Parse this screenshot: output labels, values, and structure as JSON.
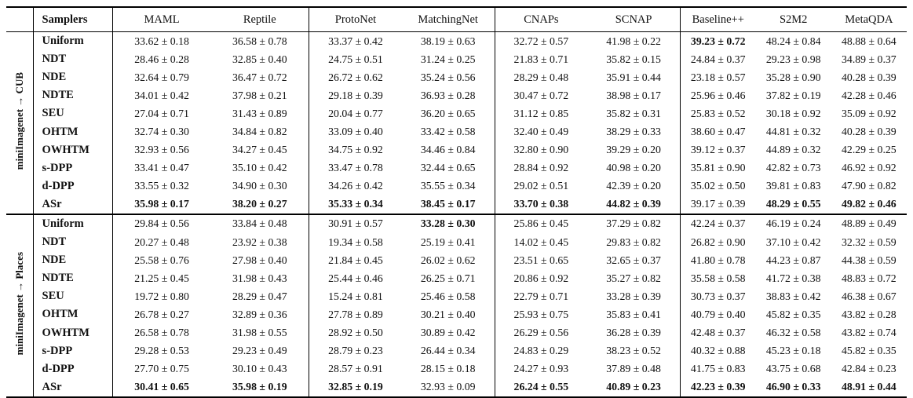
{
  "colors": {
    "text": "#111111",
    "rule": "#000000",
    "background": "#ffffff"
  },
  "table": {
    "header": {
      "samplers_label": "Samplers",
      "models": [
        "MAML",
        "Reptile",
        "ProtoNet",
        "MatchingNet",
        "CNAPs",
        "SCNAP",
        "Baseline++",
        "S2M2",
        "MetaQDA"
      ]
    },
    "sections": [
      {
        "group_label": "miniImagenet → CUB",
        "rows": [
          {
            "sampler": "Uniform",
            "values": [
              "33.62 ± 0.18",
              "36.58 ± 0.78",
              "33.37 ± 0.42",
              "38.19 ± 0.63",
              "32.72 ± 0.57",
              "41.98 ± 0.22",
              "39.23 ± 0.72",
              "48.24 ± 0.84",
              "48.88 ± 0.64"
            ],
            "bold": [
              6
            ]
          },
          {
            "sampler": "NDT",
            "values": [
              "28.46 ± 0.28",
              "32.85 ± 0.40",
              "24.75 ± 0.51",
              "31.24 ± 0.25",
              "21.83 ± 0.71",
              "35.82 ± 0.15",
              "24.84 ± 0.37",
              "29.23 ± 0.98",
              "34.89 ± 0.37"
            ],
            "bold": []
          },
          {
            "sampler": "NDE",
            "values": [
              "32.64 ± 0.79",
              "36.47 ± 0.72",
              "26.72 ± 0.62",
              "35.24 ± 0.56",
              "28.29 ± 0.48",
              "35.91 ± 0.44",
              "23.18 ± 0.57",
              "35.28 ± 0.90",
              "40.28 ± 0.39"
            ],
            "bold": []
          },
          {
            "sampler": "NDTE",
            "values": [
              "34.01 ± 0.42",
              "37.98 ± 0.21",
              "29.18 ± 0.39",
              "36.93 ± 0.28",
              "30.47 ± 0.72",
              "38.98 ± 0.17",
              "25.96 ± 0.46",
              "37.82 ± 0.19",
              "42.28 ± 0.46"
            ],
            "bold": []
          },
          {
            "sampler": "SEU",
            "values": [
              "27.04 ± 0.71",
              "31.43 ± 0.89",
              "20.04 ± 0.77",
              "36.20 ± 0.65",
              "31.12 ± 0.85",
              "35.82 ± 0.31",
              "25.83 ± 0.52",
              "30.18 ± 0.92",
              "35.09 ± 0.92"
            ],
            "bold": []
          },
          {
            "sampler": "OHTM",
            "values": [
              "32.74 ± 0.30",
              "34.84 ± 0.82",
              "33.09 ± 0.40",
              "33.42 ± 0.58",
              "32.40 ± 0.49",
              "38.29 ± 0.33",
              "38.60 ± 0.47",
              "44.81 ± 0.32",
              "40.28 ± 0.39"
            ],
            "bold": []
          },
          {
            "sampler": "OWHTM",
            "values": [
              "32.93 ± 0.56",
              "34.27 ± 0.45",
              "34.75 ± 0.92",
              "34.46 ± 0.84",
              "32.80 ± 0.90",
              "39.29 ± 0.20",
              "39.12 ± 0.37",
              "44.89 ± 0.32",
              "42.29 ± 0.25"
            ],
            "bold": []
          },
          {
            "sampler": "s-DPP",
            "values": [
              "33.41 ± 0.47",
              "35.10 ± 0.42",
              "33.47 ± 0.78",
              "32.44 ± 0.65",
              "28.84 ± 0.92",
              "40.98 ± 0.20",
              "35.81 ± 0.90",
              "42.82 ± 0.73",
              "46.92 ± 0.92"
            ],
            "bold": []
          },
          {
            "sampler": "d-DPP",
            "values": [
              "33.55 ± 0.32",
              "34.90 ± 0.30",
              "34.26 ± 0.42",
              "35.55 ± 0.34",
              "29.02 ± 0.51",
              "42.39 ± 0.20",
              "35.02 ± 0.50",
              "39.81 ± 0.83",
              "47.90 ± 0.82"
            ],
            "bold": []
          },
          {
            "sampler": "ASr",
            "values": [
              "35.98 ± 0.17",
              "38.20 ± 0.27",
              "35.33 ± 0.34",
              "38.45 ± 0.17",
              "33.70 ± 0.38",
              "44.82 ± 0.39",
              "39.17 ± 0.39",
              "48.29 ± 0.55",
              "49.82 ± 0.46"
            ],
            "bold": [
              0,
              1,
              2,
              3,
              4,
              5,
              7,
              8
            ]
          }
        ]
      },
      {
        "group_label": "miniImagenet → Places",
        "rows": [
          {
            "sampler": "Uniform",
            "values": [
              "29.84 ± 0.56",
              "33.84 ± 0.48",
              "30.91 ± 0.57",
              "33.28 ± 0.30",
              "25.86 ± 0.45",
              "37.29 ± 0.82",
              "42.24 ± 0.37",
              "46.19 ± 0.24",
              "48.89 ± 0.49"
            ],
            "bold": [
              3
            ]
          },
          {
            "sampler": "NDT",
            "values": [
              "20.27 ± 0.48",
              "23.92 ± 0.38",
              "19.34 ± 0.58",
              "25.19 ± 0.41",
              "14.02 ± 0.45",
              "29.83 ± 0.82",
              "26.82 ± 0.90",
              "37.10 ± 0.42",
              "32.32 ± 0.59"
            ],
            "bold": []
          },
          {
            "sampler": "NDE",
            "values": [
              "25.58 ± 0.76",
              "27.98 ± 0.40",
              "21.84 ± 0.45",
              "26.02 ± 0.62",
              "23.51 ± 0.65",
              "32.65 ± 0.37",
              "41.80 ± 0.78",
              "44.23 ± 0.87",
              "44.38 ± 0.59"
            ],
            "bold": []
          },
          {
            "sampler": "NDTE",
            "values": [
              "21.25 ± 0.45",
              "31.98 ± 0.43",
              "25.44 ± 0.46",
              "26.25 ± 0.71",
              "20.86 ± 0.92",
              "35.27 ± 0.82",
              "35.58 ± 0.58",
              "41.72 ± 0.38",
              "48.83 ± 0.72"
            ],
            "bold": []
          },
          {
            "sampler": "SEU",
            "values": [
              "19.72 ± 0.80",
              "28.29 ± 0.47",
              "15.24 ± 0.81",
              "25.46 ± 0.58",
              "22.79 ± 0.71",
              "33.28 ± 0.39",
              "30.73 ± 0.37",
              "38.83 ± 0.42",
              "46.38 ± 0.67"
            ],
            "bold": []
          },
          {
            "sampler": "OHTM",
            "values": [
              "26.78 ± 0.27",
              "32.89 ± 0.36",
              "27.78 ± 0.89",
              "30.21 ± 0.40",
              "25.93 ± 0.75",
              "35.83 ± 0.41",
              "40.79 ± 0.40",
              "45.82 ± 0.35",
              "43.82 ± 0.28"
            ],
            "bold": []
          },
          {
            "sampler": "OWHTM",
            "values": [
              "26.58 ± 0.78",
              "31.98 ± 0.55",
              "28.92 ± 0.50",
              "30.89 ± 0.42",
              "26.29 ± 0.56",
              "36.28 ± 0.39",
              "42.48 ± 0.37",
              "46.32 ± 0.58",
              "43.82 ± 0.74"
            ],
            "bold": []
          },
          {
            "sampler": "s-DPP",
            "values": [
              "29.28 ± 0.53",
              "29.23 ± 0.49",
              "28.79 ± 0.23",
              "26.44 ± 0.34",
              "24.83 ± 0.29",
              "38.23 ± 0.52",
              "40.32 ± 0.88",
              "45.23 ± 0.18",
              "45.82 ± 0.35"
            ],
            "bold": []
          },
          {
            "sampler": "d-DPP",
            "values": [
              "27.70 ± 0.75",
              "30.10 ± 0.43",
              "28.57 ± 0.91",
              "28.15 ± 0.18",
              "24.27 ± 0.93",
              "37.89 ± 0.48",
              "41.75 ± 0.83",
              "43.75 ± 0.68",
              "42.84 ± 0.23"
            ],
            "bold": []
          },
          {
            "sampler": "ASr",
            "values": [
              "30.41 ± 0.65",
              "35.98 ± 0.19",
              "32.85 ± 0.19",
              "32.93 ± 0.09",
              "26.24 ± 0.55",
              "40.89 ± 0.23",
              "42.23 ± 0.39",
              "46.90 ± 0.33",
              "48.91 ± 0.44"
            ],
            "bold": [
              0,
              1,
              2,
              4,
              5,
              6,
              7,
              8
            ]
          }
        ]
      }
    ]
  }
}
